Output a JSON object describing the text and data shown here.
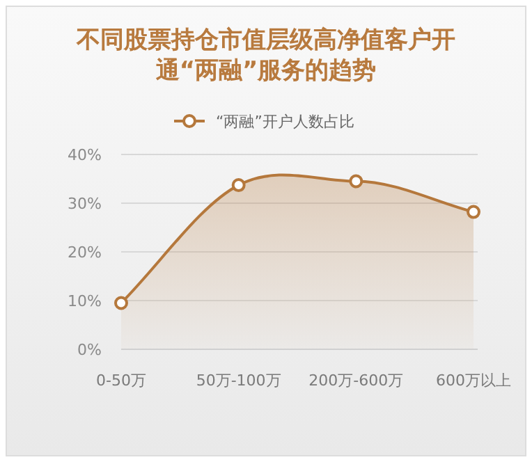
{
  "chart_data": {
    "type": "area",
    "title": "不同股票持仓市值层级高净值客户开通“两融”服务的趋势",
    "categories": [
      "0-50万",
      "50万-100万",
      "200万-600万",
      "600万以上"
    ],
    "series": [
      {
        "name": "“两融”开户人数占比",
        "color": "#b5783c",
        "values": [
          9.5,
          33.7,
          34.5,
          28.2
        ]
      }
    ],
    "ylim": [
      0,
      40
    ],
    "yticks": [
      {
        "value": 0,
        "label": "0%"
      },
      {
        "value": 10,
        "label": "10%"
      },
      {
        "value": 20,
        "label": "20%"
      },
      {
        "value": 30,
        "label": "30%"
      },
      {
        "value": 40,
        "label": "40%"
      }
    ],
    "grid": "y",
    "legend": "top",
    "marker": "circle"
  }
}
